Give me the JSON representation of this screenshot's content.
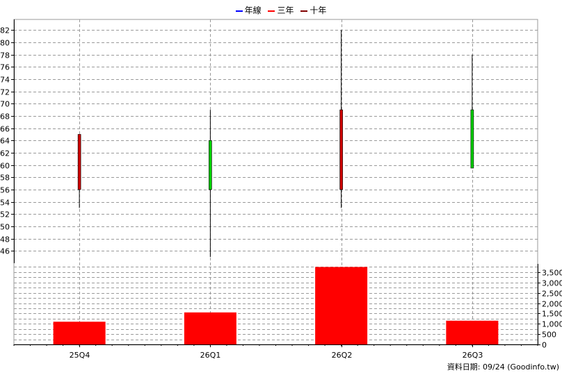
{
  "legend": [
    {
      "label": "年線",
      "color": "#0000ff"
    },
    {
      "label": "三年",
      "color": "#ff0000"
    },
    {
      "label": "十年",
      "color": "#800000"
    }
  ],
  "credit": "資料日期: 09/24  (Goodinfo.tw)",
  "colors": {
    "up": "#00cc00",
    "down": "#cc0000",
    "volume": "#ff0000",
    "grid": "#999999"
  },
  "chart_data": [
    {
      "type": "candlestick",
      "categories": [
        "25Q4",
        "26Q1",
        "26Q2",
        "26Q3"
      ],
      "series": [
        {
          "open": 65,
          "high": 65,
          "low": 53,
          "close": 56
        },
        {
          "open": 56,
          "high": 69,
          "low": 45,
          "close": 64
        },
        {
          "open": 69,
          "high": 82,
          "low": 53,
          "close": 56
        },
        {
          "open": 59.5,
          "high": 78,
          "low": 59.5,
          "close": 69
        }
      ],
      "yticks": [
        46,
        48,
        50,
        52,
        54,
        56,
        58,
        60,
        62,
        64,
        66,
        68,
        70,
        72,
        74,
        76,
        78,
        80,
        82
      ],
      "ylim": [
        44,
        83.5
      ],
      "grid": true
    },
    {
      "type": "bar",
      "categories": [
        "25Q4",
        "26Q1",
        "26Q2",
        "26Q3"
      ],
      "values": [
        1100,
        1550,
        3750,
        1150
      ],
      "yticks": [
        "0",
        "500",
        "1,000",
        "1,500",
        "2,000",
        "2,500",
        "3,000",
        "3,500"
      ],
      "ylim": [
        0,
        3900
      ],
      "grid": true
    }
  ]
}
